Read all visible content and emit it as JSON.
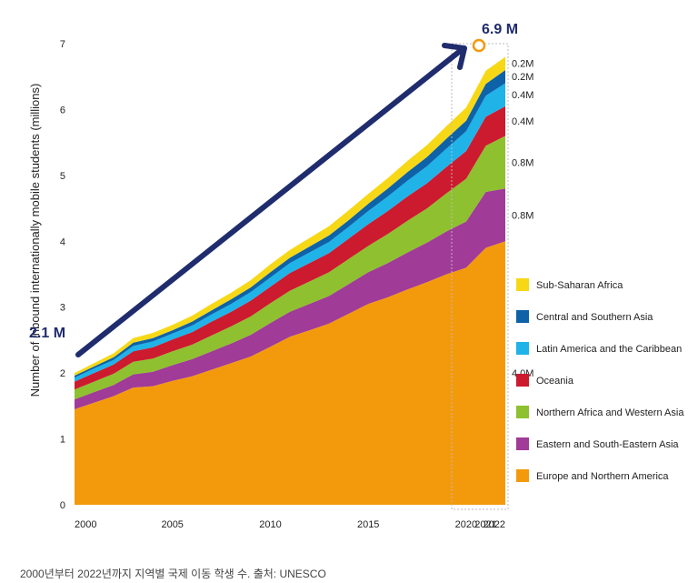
{
  "chart_data": {
    "type": "area",
    "stacked": true,
    "ylabel": "Number of inbound internationally mobile students (millions)",
    "xlabel": "",
    "ylim": [
      0,
      7
    ],
    "yticks": [
      "0",
      "1",
      "2",
      "3",
      "4",
      "5",
      "6",
      "7"
    ],
    "xticks": [
      "2000",
      "2005",
      "2010",
      "2015",
      "2020",
      "2021",
      "2022"
    ],
    "x": [
      2000,
      2001,
      2002,
      2003,
      2004,
      2005,
      2006,
      2007,
      2008,
      2009,
      2010,
      2011,
      2012,
      2013,
      2014,
      2015,
      2016,
      2017,
      2018,
      2019,
      2020,
      2021,
      2022
    ],
    "series": [
      {
        "name": "Europe and Northern America",
        "color": "#f39a0c",
        "values": [
          1.45,
          1.55,
          1.65,
          1.78,
          1.8,
          1.88,
          1.95,
          2.05,
          2.15,
          2.25,
          2.4,
          2.55,
          2.65,
          2.75,
          2.9,
          3.05,
          3.15,
          3.27,
          3.38,
          3.5,
          3.6,
          3.9,
          4.0
        ]
      },
      {
        "name": "Eastern and South-Eastern Asia",
        "color": "#a03b97",
        "values": [
          0.15,
          0.16,
          0.17,
          0.2,
          0.22,
          0.24,
          0.26,
          0.28,
          0.3,
          0.33,
          0.36,
          0.38,
          0.4,
          0.42,
          0.45,
          0.48,
          0.52,
          0.56,
          0.6,
          0.65,
          0.7,
          0.85,
          0.8
        ]
      },
      {
        "name": "Northern Africa and Western Asia",
        "color": "#8fc02f",
        "values": [
          0.15,
          0.16,
          0.17,
          0.19,
          0.2,
          0.21,
          0.22,
          0.24,
          0.26,
          0.28,
          0.3,
          0.32,
          0.34,
          0.36,
          0.38,
          0.4,
          0.44,
          0.48,
          0.52,
          0.58,
          0.65,
          0.7,
          0.8
        ]
      },
      {
        "name": "Oceania",
        "color": "#cc1a2f",
        "values": [
          0.12,
          0.13,
          0.14,
          0.16,
          0.17,
          0.18,
          0.19,
          0.21,
          0.22,
          0.24,
          0.25,
          0.27,
          0.28,
          0.29,
          0.31,
          0.33,
          0.35,
          0.37,
          0.38,
          0.4,
          0.42,
          0.44,
          0.45
        ]
      },
      {
        "name": "Latin America and the Caribbean",
        "color": "#1fb3e8",
        "values": [
          0.06,
          0.07,
          0.07,
          0.08,
          0.09,
          0.09,
          0.1,
          0.11,
          0.12,
          0.13,
          0.14,
          0.15,
          0.16,
          0.17,
          0.18,
          0.2,
          0.22,
          0.24,
          0.26,
          0.28,
          0.3,
          0.32,
          0.35
        ]
      },
      {
        "name": "Central and Southern Asia",
        "color": "#0e62a8",
        "values": [
          0.03,
          0.03,
          0.04,
          0.05,
          0.05,
          0.05,
          0.06,
          0.06,
          0.07,
          0.07,
          0.08,
          0.08,
          0.09,
          0.1,
          0.1,
          0.11,
          0.12,
          0.13,
          0.14,
          0.15,
          0.16,
          0.18,
          0.2
        ]
      },
      {
        "name": "Sub-Saharan Africa",
        "color": "#f7d817",
        "values": [
          0.04,
          0.05,
          0.06,
          0.07,
          0.08,
          0.08,
          0.09,
          0.1,
          0.1,
          0.11,
          0.12,
          0.12,
          0.13,
          0.14,
          0.15,
          0.15,
          0.16,
          0.17,
          0.18,
          0.19,
          0.2,
          0.2,
          0.2
        ]
      }
    ],
    "segment_labels": [
      "4.0M",
      "0.8M",
      "0.8M",
      "0.4M",
      "0.4M",
      "0.2M",
      "0.2M"
    ],
    "annotations": {
      "start": {
        "label": "2.1 M",
        "value": 2.1
      },
      "end": {
        "label": "6.9 M",
        "value": 6.9
      }
    },
    "legend_placement": "right"
  },
  "caption": "2000년부터 2022년까지 지역별 국제 이동 학생 수. 출처: UNESCO"
}
